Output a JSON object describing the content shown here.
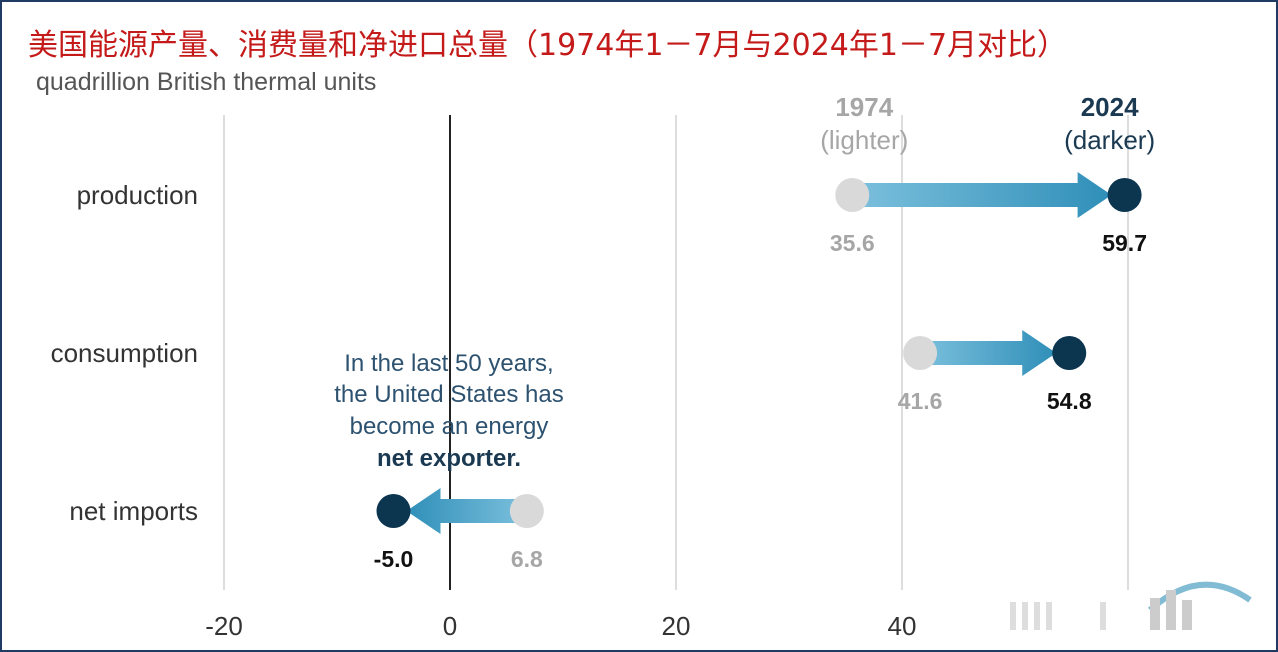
{
  "title": "美国能源产量、消费量和净进口总量（1974年1－7月与2024年1－7月对比）",
  "subtitle": "quadrillion British thermal units",
  "colors": {
    "light": "#d9d9d9",
    "dark": "#0c3550",
    "arrow_start": "#7cc0dd",
    "arrow_end": "#2f8fb8",
    "zero_line": "#222222",
    "grid": "#dddddd"
  },
  "chart_data": {
    "type": "dumbbell-arrow",
    "xlim": [
      -20,
      60
    ],
    "xticks": [
      -20,
      0,
      20,
      40
    ],
    "grid": true,
    "categories": [
      "production",
      "consumption",
      "net imports"
    ],
    "series": [
      {
        "name": "1974",
        "values": [
          35.6,
          41.6,
          6.8
        ],
        "labels": [
          "35.6",
          "41.6",
          "6.8"
        ]
      },
      {
        "name": "2024",
        "values": [
          59.7,
          54.8,
          -5.0
        ],
        "labels": [
          "59.7",
          "54.8",
          "-5.0"
        ]
      }
    ],
    "legend": {
      "light_year": "1974",
      "light_note": "(lighter)",
      "dark_year": "2024",
      "dark_note": "(darker)"
    },
    "annotation": {
      "lines": [
        "In the last 50 years,",
        "the United States has",
        "become an energy"
      ],
      "bold_line": "net exporter."
    }
  }
}
